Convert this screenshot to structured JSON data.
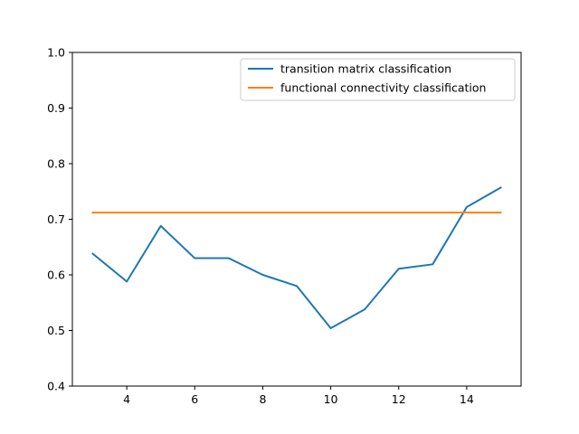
{
  "chart_data": {
    "type": "line",
    "title": "",
    "xlabel": "",
    "ylabel": "",
    "xlim": [
      2.4,
      15.6
    ],
    "ylim": [
      0.4,
      1.0
    ],
    "xticks": [
      4,
      6,
      8,
      10,
      12,
      14
    ],
    "yticks": [
      0.4,
      0.5,
      0.6,
      0.7,
      0.8,
      0.9,
      1.0
    ],
    "grid": false,
    "legend_position": "top-right",
    "series": [
      {
        "name": "transition matrix classification",
        "color": "#1f77b4",
        "x": [
          3,
          4,
          5,
          6,
          7,
          8,
          9,
          10,
          11,
          12,
          13,
          14,
          15
        ],
        "y": [
          0.638,
          0.588,
          0.688,
          0.63,
          0.63,
          0.6,
          0.58,
          0.504,
          0.538,
          0.611,
          0.619,
          0.722,
          0.757
        ]
      },
      {
        "name": "functional connectivity classification",
        "color": "#ff7f0e",
        "x": [
          3,
          4,
          5,
          6,
          7,
          8,
          9,
          10,
          11,
          12,
          13,
          14,
          15
        ],
        "y": [
          0.712,
          0.712,
          0.712,
          0.712,
          0.712,
          0.712,
          0.712,
          0.712,
          0.712,
          0.712,
          0.712,
          0.712,
          0.712
        ]
      }
    ]
  }
}
